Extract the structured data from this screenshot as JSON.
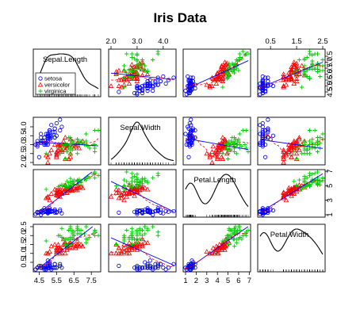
{
  "chart_data": {
    "type": "scatter",
    "title": "Iris Data",
    "variables": [
      "Sepal.Length",
      "Sepal.Width",
      "Petal.Length",
      "Petal.Width"
    ],
    "ranges": [
      [
        4.3,
        7.9
      ],
      [
        2.0,
        4.4
      ],
      [
        1.0,
        6.9
      ],
      [
        0.1,
        2.5
      ]
    ],
    "tick_labels": {
      "Sepal.Length": [
        "4.5",
        "5.5",
        "6.5",
        "7.5"
      ],
      "Sepal.Width": [
        "2.0",
        "3.0",
        "4.0"
      ],
      "Petal.Length": [
        "1",
        "2",
        "3",
        "4",
        "5",
        "6",
        "7"
      ],
      "Petal.Width": [
        "0.5",
        "1.5",
        "2.5"
      ],
      "Petal.Length.right": [
        "1",
        "3",
        "5",
        "7"
      ],
      "Sepal.Length.right": [
        "4.5",
        "5.5",
        "6.5",
        "7.5"
      ],
      "Sepal.Width.left": [
        "2.0",
        "2.5",
        "3.0",
        "3.5",
        "4.0"
      ]
    },
    "tick_values": {
      "Sepal.Length": [
        4.5,
        5.5,
        6.5,
        7.5
      ],
      "Sepal.Length.right": [
        4.5,
        5.0,
        5.5,
        6.0,
        6.5,
        7.0,
        7.5
      ],
      "Sepal.Width": [
        2.0,
        3.0,
        4.0
      ],
      "Sepal.Width.left": [
        2.0,
        2.5,
        3.0,
        3.5,
        4.0
      ],
      "Petal.Length": [
        1,
        2,
        3,
        4,
        5,
        6,
        7
      ],
      "Petal.Length.right": [
        1,
        3,
        5,
        7
      ],
      "Petal.Width": [
        0.5,
        1.5,
        2.5
      ],
      "Petal.Width.left": [
        0.5,
        1.0,
        1.5,
        2.0,
        2.5
      ]
    },
    "right_labels": {
      "Sepal.Length": [
        "4.5",
        "5.0",
        "5.5",
        "6.0",
        "6.5",
        "7.0",
        "7.5"
      ]
    },
    "left_labels": {
      "Petal.Width": [
        "0.5",
        "1.0",
        "1.5",
        "2.0",
        "2.5"
      ]
    },
    "legend": {
      "placement": "bottom-left of Sepal.Length panel",
      "entries": [
        "setosa",
        "versicolor",
        "virginica"
      ]
    },
    "series": [
      {
        "name": "setosa",
        "color": "#0000ff",
        "marker": "circle",
        "points": [
          [
            5.1,
            3.5,
            1.4,
            0.2
          ],
          [
            4.9,
            3.0,
            1.4,
            0.2
          ],
          [
            4.7,
            3.2,
            1.3,
            0.2
          ],
          [
            4.6,
            3.1,
            1.5,
            0.2
          ],
          [
            5.0,
            3.6,
            1.4,
            0.2
          ],
          [
            5.4,
            3.9,
            1.7,
            0.4
          ],
          [
            4.6,
            3.4,
            1.4,
            0.3
          ],
          [
            5.0,
            3.4,
            1.5,
            0.2
          ],
          [
            4.4,
            2.9,
            1.4,
            0.2
          ],
          [
            4.9,
            3.1,
            1.5,
            0.1
          ],
          [
            5.4,
            3.7,
            1.5,
            0.2
          ],
          [
            4.8,
            3.4,
            1.6,
            0.2
          ],
          [
            4.8,
            3.0,
            1.4,
            0.1
          ],
          [
            4.3,
            3.0,
            1.1,
            0.1
          ],
          [
            5.8,
            4.0,
            1.2,
            0.2
          ],
          [
            5.7,
            4.4,
            1.5,
            0.4
          ],
          [
            5.4,
            3.9,
            1.3,
            0.4
          ],
          [
            5.1,
            3.5,
            1.4,
            0.3
          ],
          [
            5.7,
            3.8,
            1.7,
            0.3
          ],
          [
            5.1,
            3.8,
            1.5,
            0.3
          ],
          [
            5.4,
            3.4,
            1.7,
            0.2
          ],
          [
            5.1,
            3.7,
            1.5,
            0.4
          ],
          [
            4.6,
            3.6,
            1.0,
            0.2
          ],
          [
            5.1,
            3.3,
            1.7,
            0.5
          ],
          [
            4.8,
            3.4,
            1.9,
            0.2
          ],
          [
            5.0,
            3.0,
            1.6,
            0.2
          ],
          [
            5.0,
            3.4,
            1.6,
            0.4
          ],
          [
            5.2,
            3.5,
            1.5,
            0.2
          ],
          [
            5.2,
            3.4,
            1.4,
            0.2
          ],
          [
            4.7,
            3.2,
            1.6,
            0.2
          ],
          [
            4.8,
            3.1,
            1.6,
            0.2
          ],
          [
            5.4,
            3.4,
            1.5,
            0.4
          ],
          [
            5.2,
            4.1,
            1.5,
            0.1
          ],
          [
            5.5,
            4.2,
            1.4,
            0.2
          ],
          [
            4.9,
            3.1,
            1.5,
            0.2
          ],
          [
            5.0,
            3.2,
            1.2,
            0.2
          ],
          [
            5.5,
            3.5,
            1.3,
            0.2
          ],
          [
            4.9,
            3.6,
            1.4,
            0.1
          ],
          [
            4.4,
            3.0,
            1.3,
            0.2
          ],
          [
            5.1,
            3.4,
            1.5,
            0.2
          ],
          [
            5.0,
            3.5,
            1.3,
            0.3
          ],
          [
            4.5,
            2.3,
            1.3,
            0.3
          ],
          [
            4.4,
            3.2,
            1.3,
            0.2
          ],
          [
            5.0,
            3.5,
            1.6,
            0.6
          ],
          [
            5.1,
            3.8,
            1.9,
            0.4
          ],
          [
            4.8,
            3.0,
            1.4,
            0.3
          ],
          [
            5.1,
            3.8,
            1.6,
            0.2
          ],
          [
            4.6,
            3.2,
            1.4,
            0.2
          ],
          [
            5.3,
            3.7,
            1.5,
            0.2
          ],
          [
            5.0,
            3.3,
            1.4,
            0.2
          ]
        ]
      },
      {
        "name": "versicolor",
        "color": "#ff0000",
        "marker": "triangle",
        "points": [
          [
            7.0,
            3.2,
            4.7,
            1.4
          ],
          [
            6.4,
            3.2,
            4.5,
            1.5
          ],
          [
            6.9,
            3.1,
            4.9,
            1.5
          ],
          [
            5.5,
            2.3,
            4.0,
            1.3
          ],
          [
            6.5,
            2.8,
            4.6,
            1.5
          ],
          [
            5.7,
            2.8,
            4.5,
            1.3
          ],
          [
            6.3,
            3.3,
            4.7,
            1.6
          ],
          [
            4.9,
            2.4,
            3.3,
            1.0
          ],
          [
            6.6,
            2.9,
            4.6,
            1.3
          ],
          [
            5.2,
            2.7,
            3.9,
            1.4
          ],
          [
            5.0,
            2.0,
            3.5,
            1.0
          ],
          [
            5.9,
            3.0,
            4.2,
            1.5
          ],
          [
            6.0,
            2.2,
            4.0,
            1.0
          ],
          [
            6.1,
            2.9,
            4.7,
            1.4
          ],
          [
            5.6,
            2.9,
            3.6,
            1.3
          ],
          [
            6.7,
            3.1,
            4.4,
            1.4
          ],
          [
            5.6,
            3.0,
            4.5,
            1.5
          ],
          [
            5.8,
            2.7,
            4.1,
            1.0
          ],
          [
            6.2,
            2.2,
            4.5,
            1.5
          ],
          [
            5.6,
            2.5,
            3.9,
            1.1
          ],
          [
            5.9,
            3.2,
            4.8,
            1.8
          ],
          [
            6.1,
            2.8,
            4.0,
            1.3
          ],
          [
            6.3,
            2.5,
            4.9,
            1.5
          ],
          [
            6.1,
            2.8,
            4.7,
            1.2
          ],
          [
            6.4,
            2.9,
            4.3,
            1.3
          ],
          [
            6.6,
            3.0,
            4.4,
            1.4
          ],
          [
            6.8,
            2.8,
            4.8,
            1.4
          ],
          [
            6.7,
            3.0,
            5.0,
            1.7
          ],
          [
            6.0,
            2.9,
            4.5,
            1.5
          ],
          [
            5.7,
            2.6,
            3.5,
            1.0
          ],
          [
            5.5,
            2.4,
            3.8,
            1.1
          ],
          [
            5.5,
            2.4,
            3.7,
            1.0
          ],
          [
            5.8,
            2.7,
            3.9,
            1.2
          ],
          [
            6.0,
            2.7,
            5.1,
            1.6
          ],
          [
            5.4,
            3.0,
            4.5,
            1.5
          ],
          [
            6.0,
            3.4,
            4.5,
            1.6
          ],
          [
            6.7,
            3.1,
            4.7,
            1.5
          ],
          [
            6.3,
            2.3,
            4.4,
            1.3
          ],
          [
            5.6,
            3.0,
            4.1,
            1.3
          ],
          [
            5.5,
            2.5,
            4.0,
            1.3
          ],
          [
            5.5,
            2.6,
            4.4,
            1.2
          ],
          [
            6.1,
            3.0,
            4.6,
            1.4
          ],
          [
            5.8,
            2.6,
            4.0,
            1.2
          ],
          [
            5.0,
            2.3,
            3.3,
            1.0
          ],
          [
            5.6,
            2.7,
            4.2,
            1.3
          ],
          [
            5.7,
            3.0,
            4.2,
            1.2
          ],
          [
            5.7,
            2.9,
            4.2,
            1.3
          ],
          [
            6.2,
            2.9,
            4.3,
            1.3
          ],
          [
            5.1,
            2.5,
            3.0,
            1.1
          ],
          [
            5.7,
            2.8,
            4.1,
            1.3
          ]
        ]
      },
      {
        "name": "virginica",
        "color": "#00cc00",
        "marker": "plus",
        "points": [
          [
            6.3,
            3.3,
            6.0,
            2.5
          ],
          [
            5.8,
            2.7,
            5.1,
            1.9
          ],
          [
            7.1,
            3.0,
            5.9,
            2.1
          ],
          [
            6.3,
            2.9,
            5.6,
            1.8
          ],
          [
            6.5,
            3.0,
            5.8,
            2.2
          ],
          [
            7.6,
            3.0,
            6.6,
            2.1
          ],
          [
            4.9,
            2.5,
            4.5,
            1.7
          ],
          [
            7.3,
            2.9,
            6.3,
            1.8
          ],
          [
            6.7,
            2.5,
            5.8,
            1.8
          ],
          [
            7.2,
            3.6,
            6.1,
            2.5
          ],
          [
            6.5,
            3.2,
            5.1,
            2.0
          ],
          [
            6.4,
            2.7,
            5.3,
            1.9
          ],
          [
            6.8,
            3.0,
            5.5,
            2.1
          ],
          [
            5.7,
            2.5,
            5.0,
            2.0
          ],
          [
            5.8,
            2.8,
            5.1,
            2.4
          ],
          [
            6.4,
            3.2,
            5.3,
            2.3
          ],
          [
            6.5,
            3.0,
            5.5,
            1.8
          ],
          [
            7.7,
            3.8,
            6.7,
            2.2
          ],
          [
            7.7,
            2.6,
            6.9,
            2.3
          ],
          [
            6.0,
            2.2,
            5.0,
            1.5
          ],
          [
            6.9,
            3.2,
            5.7,
            2.3
          ],
          [
            5.6,
            2.8,
            4.9,
            2.0
          ],
          [
            7.7,
            2.8,
            6.7,
            2.0
          ],
          [
            6.3,
            2.7,
            4.9,
            1.8
          ],
          [
            6.7,
            3.3,
            5.7,
            2.1
          ],
          [
            7.2,
            3.2,
            6.0,
            1.8
          ],
          [
            6.2,
            2.8,
            4.8,
            1.8
          ],
          [
            6.1,
            3.0,
            4.9,
            1.8
          ],
          [
            6.4,
            2.8,
            5.6,
            2.1
          ],
          [
            7.2,
            3.0,
            5.8,
            1.6
          ],
          [
            7.4,
            2.8,
            6.1,
            1.9
          ],
          [
            7.9,
            3.8,
            6.4,
            2.0
          ],
          [
            6.4,
            2.8,
            5.6,
            2.2
          ],
          [
            6.3,
            2.8,
            5.1,
            1.5
          ],
          [
            6.1,
            2.6,
            5.6,
            1.4
          ],
          [
            7.7,
            3.0,
            6.1,
            2.3
          ],
          [
            6.3,
            3.4,
            5.6,
            2.4
          ],
          [
            6.4,
            3.1,
            5.5,
            1.8
          ],
          [
            6.0,
            3.0,
            4.8,
            1.8
          ],
          [
            6.9,
            3.1,
            5.4,
            2.1
          ],
          [
            6.7,
            3.1,
            5.6,
            2.4
          ],
          [
            6.9,
            3.1,
            5.1,
            2.3
          ],
          [
            5.8,
            2.7,
            5.1,
            1.9
          ],
          [
            6.8,
            3.2,
            5.9,
            2.3
          ],
          [
            6.7,
            3.3,
            5.7,
            2.5
          ],
          [
            6.7,
            3.0,
            5.2,
            2.3
          ],
          [
            6.3,
            2.5,
            5.0,
            1.9
          ],
          [
            6.5,
            3.0,
            5.2,
            2.0
          ],
          [
            6.2,
            3.4,
            5.4,
            2.3
          ],
          [
            5.9,
            3.0,
            5.1,
            1.8
          ]
        ]
      }
    ],
    "regression_line_color": "#0000ff",
    "smoother_line_color": "#ff0000"
  }
}
